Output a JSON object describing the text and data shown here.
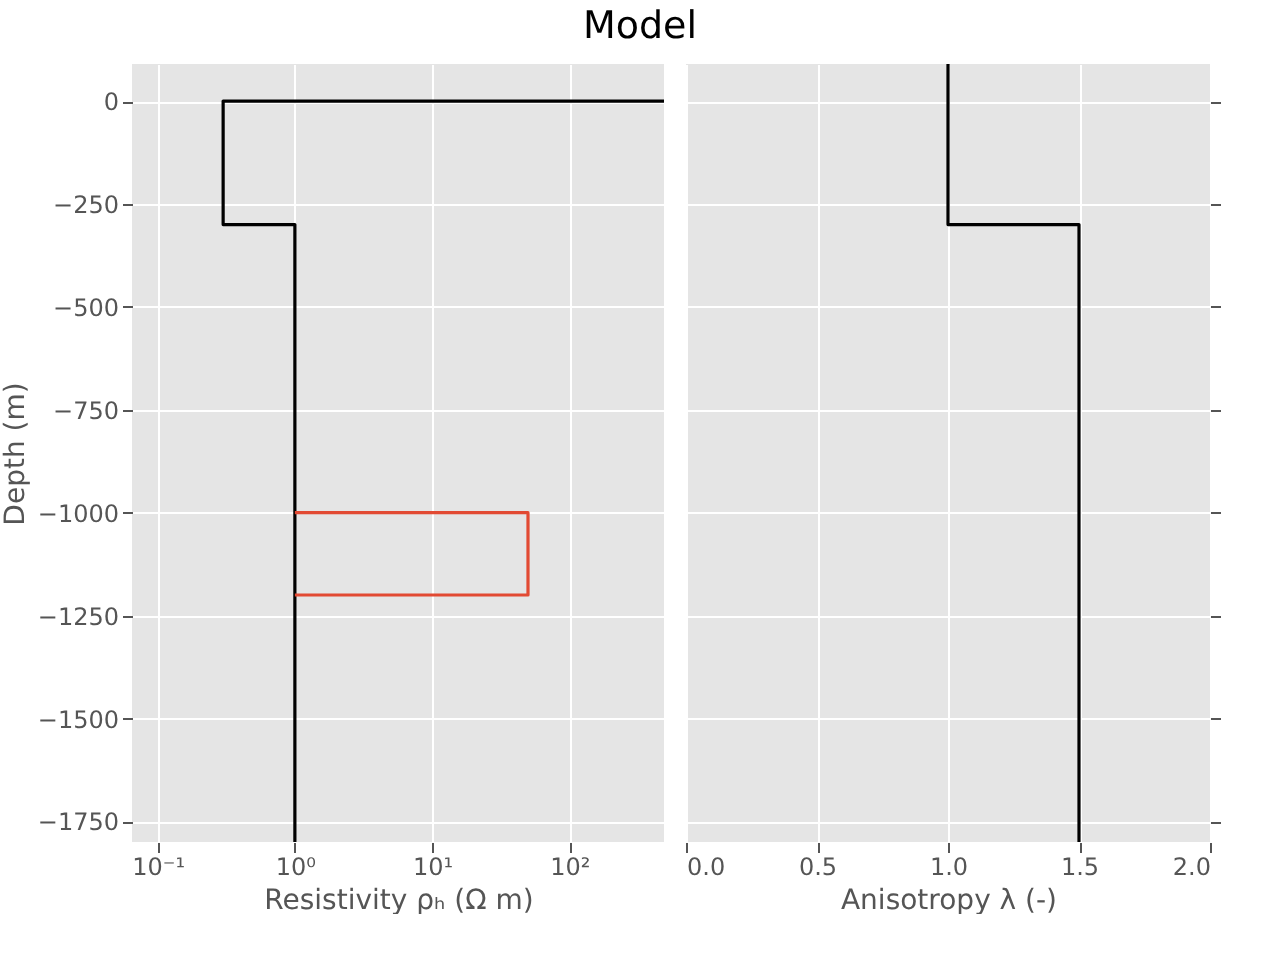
{
  "chart_data": [
    {
      "type": "line",
      "title": "Model",
      "xlabel": "Resistivity ρₕ (Ω m)",
      "ylabel": "Depth (m)",
      "log": "x",
      "grid": true,
      "xlim": [
        0.065,
        490
      ],
      "xticks": [
        {
          "value": 0.1,
          "label": "10⁻¹"
        },
        {
          "value": 1,
          "label": "10⁰"
        },
        {
          "value": 10,
          "label": "10¹"
        },
        {
          "value": 100,
          "label": "10²"
        }
      ],
      "ylim": [
        -1800,
        90
      ],
      "yticks": [
        0,
        -250,
        -500,
        -750,
        -1000,
        -1250,
        -1500,
        -1750
      ],
      "series": [
        {
          "color": "#000000",
          "x": [
            490,
            0.3,
            0.3,
            1,
            1
          ],
          "values": [
            0,
            0,
            -300,
            -300,
            -1800
          ]
        },
        {
          "color": "#e24a33",
          "x": [
            1,
            50,
            50,
            1
          ],
          "values": [
            -1000,
            -1000,
            -1200,
            -1200
          ]
        }
      ]
    },
    {
      "type": "line",
      "xlabel": "Anisotropy λ (-)",
      "grid": true,
      "tick_labels": "x",
      "xlim": [
        0,
        2
      ],
      "xticks": [
        {
          "value": 0,
          "label": "0.0"
        },
        {
          "value": 0.5,
          "label": "0.5"
        },
        {
          "value": 1,
          "label": "1.0"
        },
        {
          "value": 1.5,
          "label": "1.5"
        },
        {
          "value": 2,
          "label": "2.0"
        }
      ],
      "ylim": [
        -1800,
        90
      ],
      "yticks": [
        0,
        -250,
        -500,
        -750,
        -1000,
        -1250,
        -1500,
        -1750
      ],
      "series": [
        {
          "color": "#000000",
          "x": [
            1,
            1,
            1.5,
            1.5
          ],
          "values": [
            90,
            -300,
            -300,
            -1800
          ]
        }
      ]
    }
  ]
}
